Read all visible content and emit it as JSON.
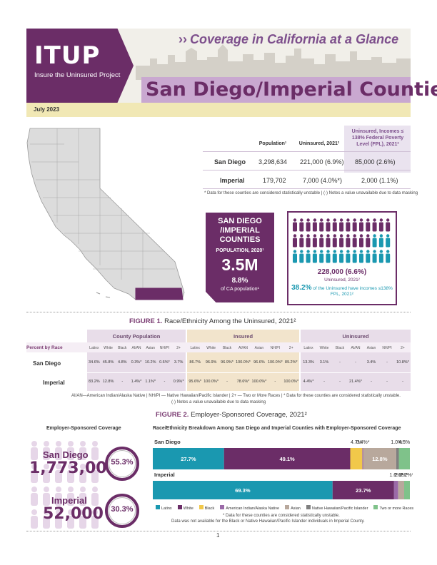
{
  "header": {
    "logo": "ITUP",
    "logo_sub": "Insure the Uninsured Project",
    "series_title": "Coverage in California at a Glance",
    "page_title": "San Diego/Imperial Counties",
    "date": "July 2023"
  },
  "summary_table": {
    "headers": [
      "Population¹",
      "Uninsured, 2021²",
      "Uninsured, Incomes ≤ 138% Federal Poverty Level (FPL), 2021²"
    ],
    "rows": [
      {
        "name": "San Diego",
        "population": "3,298,634",
        "uninsured": "221,000 (6.9%)",
        "uninsured_fpl": "85,000 (2.6%)"
      },
      {
        "name": "Imperial",
        "population": "179,702",
        "uninsured": "7,000 (4.0%*)",
        "uninsured_fpl": "2,000 (1.1%)"
      }
    ],
    "note": "* Data for these counties are considered statistically unstable | (-) Notes a value unavailable due to data masking"
  },
  "population_box": {
    "title": "SAN DIEGO /IMPERIAL COUNTIES",
    "subtitle": "POPULATION, 2020¹",
    "value": "3.5M",
    "share": "8.8%",
    "share_label": "of CA population¹"
  },
  "uninsured_box": {
    "value": "228,000 (6.6%)",
    "label": "Uninsured, 2021²",
    "share": "38.2%",
    "share_label": "of the Uninsured have incomes ≤138% FPL, 2021²",
    "icons_total": 45,
    "icons_highlighted": 18
  },
  "figure1": {
    "label": "FIGURE 1.",
    "title": "Race/Ethnicity Among the Uninsured, 2021²",
    "row_header": "Percent by Race",
    "groups": [
      "County Population",
      "Insured",
      "Uninsured"
    ],
    "columns": [
      "Latinx",
      "White",
      "Black",
      "AI/AN",
      "Asian",
      "NH/PI",
      "2+"
    ],
    "rows": [
      {
        "name": "San Diego",
        "values": [
          "34.6%",
          "45.8%",
          "4.8%",
          "0.3%*",
          "10.2%",
          "0.6%*",
          "3.7%",
          "86.7%",
          "96.9%",
          "96.9%*",
          "100.0%*",
          "96.6%",
          "100.0%*",
          "89.2%*",
          "13.3%",
          "3.1%",
          "-",
          "-",
          "3.4%",
          "-",
          "10.8%*"
        ]
      },
      {
        "name": "Imperial",
        "values": [
          "83.2%",
          "12.8%",
          "-",
          "1.4%*",
          "1.1%*",
          "-",
          "0.9%*",
          "95.6%*",
          "100.0%*",
          "-",
          "78.6%*",
          "100.0%*",
          "-",
          "100.0%*",
          "4.4%*",
          "-",
          "-",
          "21.4%*",
          "-",
          "-",
          "-"
        ]
      }
    ],
    "note1": "AI/AN—American Indian/Alaska Native | NH/PI — Native Hawaiian/Pacific Islander | 2+ — Two or More Races | * Data for these counties are considered statistically unstable.",
    "note2": "(-) Notes a value unavailable due to data masking"
  },
  "figure2": {
    "label": "FIGURE 2.",
    "title": "Employer-Sponsored Coverage, 2021²",
    "left_title": "Employer-Sponsored Coverage",
    "right_title": "Race/Ethnicity Breakdown Among San Diego and Imperial Counties with Employer-Sponsored Coverage",
    "counties": [
      {
        "name": "San Diego",
        "count": "1,773,000",
        "pct": "55.3%",
        "pct_value": 55.3
      },
      {
        "name": "Imperial",
        "count": "52,000",
        "pct": "30.3%",
        "pct_value": 30.3
      }
    ],
    "note1": "* Data for these counties are considered statistically unstable.",
    "note2": "Data was not available for the Black or Native Hawaiian/Pacific Islander individuals in Imperial County."
  },
  "chart_data": {
    "type": "bar",
    "orientation": "horizontal-stacked",
    "categories": [
      "San Diego",
      "Imperial"
    ],
    "series": [
      {
        "name": "Latinx",
        "color": "#1a98b0",
        "values": [
          27.7,
          69.3
        ],
        "labels": [
          "27.7%",
          "69.3%"
        ]
      },
      {
        "name": "White",
        "color": "#6b2d67",
        "values": [
          49.1,
          23.7
        ],
        "labels": [
          "49.1%",
          "23.7%"
        ]
      },
      {
        "name": "Black",
        "color": "#f1c84a",
        "values": [
          4.7,
          0
        ],
        "labels": [
          "4.7%",
          ""
        ]
      },
      {
        "name": "American Indian/Alaska Native",
        "color": "#9b6aa8",
        "values": [
          0.4,
          1.6
        ],
        "labels": [
          "0.4%*",
          "1.6%*"
        ]
      },
      {
        "name": "Asian",
        "color": "#b8a89c",
        "values": [
          12.8,
          2.3
        ],
        "labels": [
          "12.8%",
          "2.3%*"
        ]
      },
      {
        "name": "Native Hawaiian/Pacific Islander",
        "color": "#7f7f7f",
        "values": [
          1.0,
          0
        ],
        "labels": [
          "1.0%*",
          ""
        ]
      },
      {
        "name": "Two or more Races",
        "color": "#7fc28a",
        "values": [
          4.3,
          2.2
        ],
        "labels": [
          "4.3%",
          "2.2%*"
        ]
      }
    ],
    "legend": "bottom"
  },
  "page_number": "1"
}
